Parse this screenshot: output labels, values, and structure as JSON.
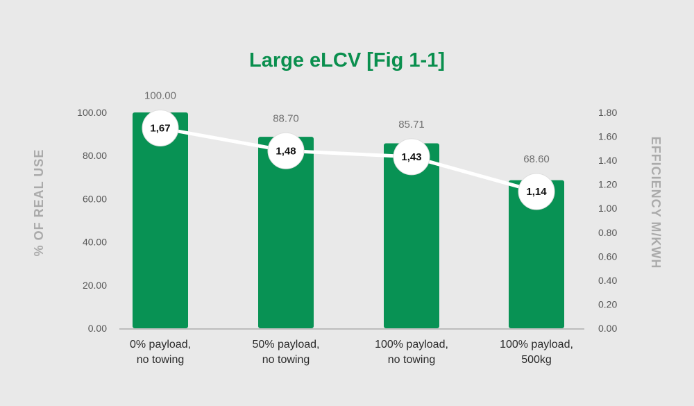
{
  "chart_data": {
    "type": "bar",
    "title": "Large eLCV [Fig 1-1]",
    "ylabel": "% OF REAL USE",
    "ylabel_right": "EFFICIENCY M/KWH",
    "categories": [
      [
        "0% payload,",
        "no towing"
      ],
      [
        "50% payload,",
        "no towing"
      ],
      [
        "100% payload,",
        "no towing"
      ],
      [
        "100% payload,",
        "500kg"
      ]
    ],
    "series": [
      {
        "axis": "left",
        "kind": "bar",
        "values": [
          100.0,
          88.7,
          85.71,
          68.6
        ],
        "labels": [
          "100.00",
          "88.70",
          "85.71",
          "68.60"
        ]
      },
      {
        "axis": "right",
        "kind": "line",
        "values": [
          1.67,
          1.48,
          1.43,
          1.14
        ],
        "labels": [
          "1,67",
          "1,48",
          "1,43",
          "1,14"
        ]
      }
    ],
    "ylim": [
      0,
      100
    ],
    "ylim_right": [
      0,
      1.8
    ],
    "yticks": [
      "0.00",
      "20.00",
      "40.00",
      "60.00",
      "80.00",
      "100.00"
    ],
    "yticks_right": [
      "0.00",
      "0.20",
      "0.40",
      "0.60",
      "0.80",
      "1.00",
      "1.20",
      "1.40",
      "1.60",
      "1.80"
    ],
    "grid": false,
    "legend": "none",
    "colors": {
      "bar": "#089254",
      "title": "#0a8f4e",
      "line": "#ffffff",
      "marker_text": "#111111",
      "axis_text": "#555555",
      "value_label": "#707070",
      "axis_title": "#aaaaaa",
      "baseline": "#bdbdbd"
    }
  }
}
